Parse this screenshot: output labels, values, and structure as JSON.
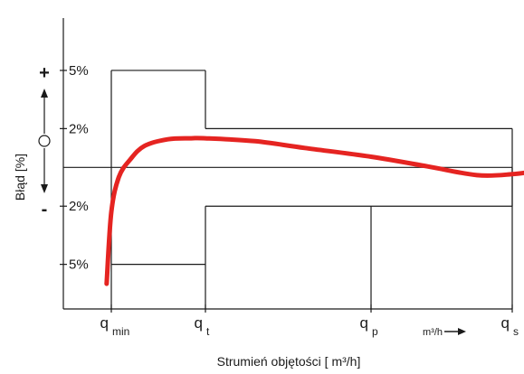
{
  "chart_data": {
    "type": "line",
    "title": "",
    "xlabel": "Strumień objętości [ m³/h]",
    "ylabel": "Błąd [%]",
    "sign_plus": "+",
    "sign_minus": "-",
    "y_ticks": [
      "5%",
      "2%",
      "2%",
      "5%"
    ],
    "y_tick_values": [
      5,
      2,
      -2,
      -5
    ],
    "ylim": [
      -7.3,
      7.7
    ],
    "x_positions": [
      "q_min",
      "q_t",
      "q_p",
      "q_s"
    ],
    "x_ticks": [
      {
        "main": "q",
        "sub": "min"
      },
      {
        "main": "q",
        "sub": "t"
      },
      {
        "main": "q",
        "sub": "p"
      },
      {
        "main": "q",
        "sub": "s"
      }
    ],
    "x_unit_note": "m³/h",
    "error_limits": {
      "upper": [
        {
          "from": "q_min",
          "to": "q_t",
          "value": 5
        },
        {
          "from": "q_t",
          "to": "q_s",
          "value": 2
        }
      ],
      "lower": [
        {
          "from": "q_min",
          "to": "q_t",
          "value": -5
        },
        {
          "from": "q_t",
          "to": "q_s",
          "value": -2
        }
      ]
    },
    "series": [
      {
        "color": "#e52421",
        "x": [
          -0.05,
          0.0,
          0.08,
          0.2,
          0.35,
          0.6,
          0.85,
          1.0,
          1.3,
          1.6,
          2.0,
          2.4,
          2.75,
          3.0,
          3.2,
          3.4,
          3.6
        ],
        "y": [
          -6.0,
          -2.3,
          -0.5,
          0.4,
          1.1,
          1.45,
          1.5,
          1.5,
          1.35,
          1.0,
          0.55,
          0.05,
          -0.4,
          -0.35,
          -0.15,
          0.15,
          0.55
        ]
      }
    ]
  }
}
